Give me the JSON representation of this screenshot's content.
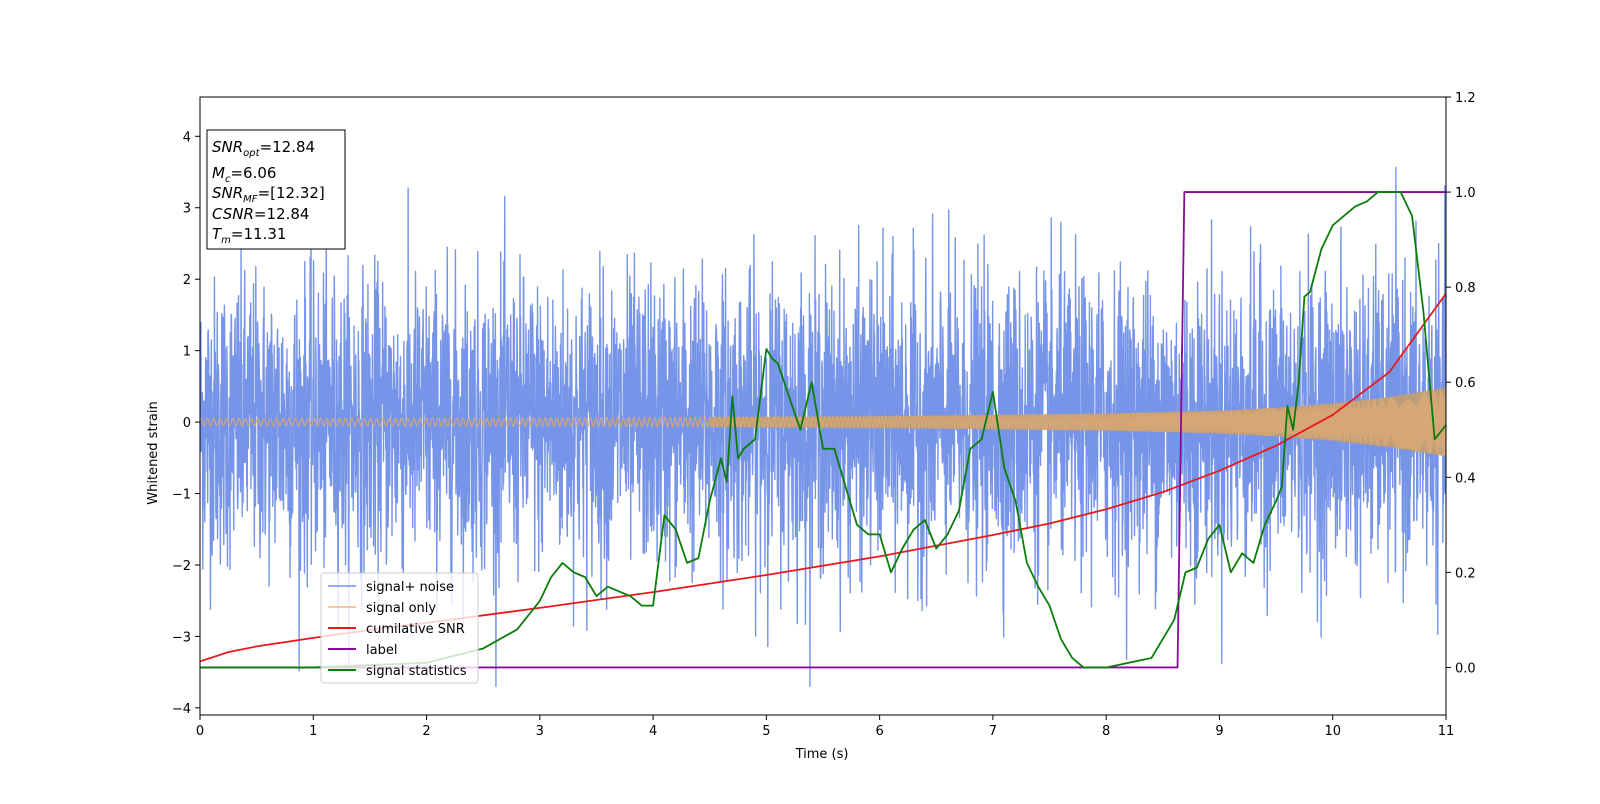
{
  "chart_data": {
    "type": "line",
    "xlabel": "Time (s)",
    "ylabel": "Whitened strain",
    "xlim": [
      0,
      11
    ],
    "ylim_left": [
      -4.1,
      4.55
    ],
    "ylim_right": [
      -0.1,
      1.2
    ],
    "xticks": [
      "0",
      "1",
      "2",
      "3",
      "4",
      "5",
      "6",
      "7",
      "8",
      "9",
      "10",
      "11"
    ],
    "yticks_left": [
      "−4",
      "−3",
      "−2",
      "−1",
      "0",
      "1",
      "2",
      "3",
      "4"
    ],
    "yticks_right": [
      "0.0",
      "0.2",
      "0.4",
      "0.6",
      "0.8",
      "1.0",
      "1.2"
    ],
    "legend_placement": "lower-left",
    "annotation": [
      {
        "main": "SNR",
        "sub": "opt",
        "rest": "=12.84",
        "italic": true
      },
      {
        "main": "M",
        "sub": "c",
        "rest": "=6.06",
        "italic": true
      },
      {
        "main": "SNR",
        "sub": "MF",
        "rest": "=[12.32]",
        "italic": true
      },
      {
        "main": "CSNR",
        "sub": "",
        "rest": "=12.84",
        "italic": true
      },
      {
        "main": "T",
        "sub": "m",
        "rest": "=11.31",
        "italic": true
      }
    ],
    "series": [
      {
        "name": "signal+ noise",
        "color": "#7694e8",
        "axis": "left",
        "description_stats": {
          "mean": 0,
          "std": 1.0,
          "min": -3.7,
          "max": 4.15
        }
      },
      {
        "name": "signal only",
        "color": "#f2b87a",
        "axis": "left",
        "envelope": {
          "x": [
            0,
            2,
            4,
            6,
            7,
            8,
            9,
            9.5,
            10,
            10.5,
            11
          ],
          "amp": [
            0.05,
            0.055,
            0.065,
            0.08,
            0.1,
            0.12,
            0.16,
            0.2,
            0.26,
            0.35,
            0.48
          ]
        }
      },
      {
        "name": "cumilative SNR",
        "color": "#e8191c",
        "axis": "left",
        "x": [
          0,
          0.25,
          0.5,
          1,
          1.5,
          2,
          3,
          4,
          5,
          6,
          7,
          7.5,
          8,
          8.5,
          9,
          9.5,
          10,
          10.5,
          11
        ],
        "y": [
          -3.35,
          -3.22,
          -3.14,
          -3.02,
          -2.91,
          -2.81,
          -2.6,
          -2.38,
          -2.14,
          -1.88,
          -1.58,
          -1.42,
          -1.22,
          -0.98,
          -0.68,
          -0.33,
          0.1,
          0.7,
          1.8
        ]
      },
      {
        "name": "label",
        "color": "#8b0a9c",
        "axis": "right",
        "x": [
          0,
          8.63,
          8.69,
          11
        ],
        "y": [
          0,
          0,
          1,
          1
        ]
      },
      {
        "name": "signal statistics",
        "color": "#0b7d0b",
        "axis": "right",
        "x": [
          0,
          1,
          2,
          2.5,
          2.8,
          3,
          3.1,
          3.2,
          3.3,
          3.4,
          3.5,
          3.6,
          3.7,
          3.8,
          3.9,
          4.0,
          4.1,
          4.2,
          4.3,
          4.4,
          4.5,
          4.6,
          4.65,
          4.7,
          4.75,
          4.8,
          4.9,
          5.0,
          5.05,
          5.1,
          5.2,
          5.3,
          5.4,
          5.5,
          5.6,
          5.7,
          5.8,
          5.9,
          6.0,
          6.1,
          6.2,
          6.3,
          6.4,
          6.5,
          6.6,
          6.7,
          6.8,
          6.9,
          7.0,
          7.1,
          7.2,
          7.3,
          7.4,
          7.5,
          7.6,
          7.7,
          7.8,
          8.0,
          8.2,
          8.4,
          8.6,
          8.7,
          8.8,
          8.9,
          9.0,
          9.1,
          9.2,
          9.3,
          9.4,
          9.5,
          9.55,
          9.6,
          9.65,
          9.7,
          9.75,
          9.8,
          9.9,
          10.0,
          10.1,
          10.2,
          10.3,
          10.4,
          10.5,
          10.6,
          10.7,
          10.8,
          10.9,
          11.0
        ],
        "y": [
          0.0,
          0.0,
          0.01,
          0.04,
          0.08,
          0.14,
          0.19,
          0.22,
          0.2,
          0.19,
          0.15,
          0.17,
          0.16,
          0.15,
          0.13,
          0.13,
          0.32,
          0.29,
          0.22,
          0.23,
          0.35,
          0.44,
          0.39,
          0.57,
          0.44,
          0.46,
          0.48,
          0.67,
          0.65,
          0.64,
          0.57,
          0.5,
          0.6,
          0.46,
          0.46,
          0.38,
          0.3,
          0.28,
          0.28,
          0.2,
          0.25,
          0.29,
          0.31,
          0.25,
          0.28,
          0.33,
          0.46,
          0.48,
          0.58,
          0.42,
          0.35,
          0.22,
          0.17,
          0.13,
          0.06,
          0.02,
          0.0,
          0.0,
          0.01,
          0.02,
          0.1,
          0.2,
          0.21,
          0.27,
          0.3,
          0.2,
          0.24,
          0.22,
          0.3,
          0.35,
          0.38,
          0.55,
          0.5,
          0.6,
          0.78,
          0.79,
          0.88,
          0.93,
          0.95,
          0.97,
          0.98,
          1.0,
          1.0,
          1.0,
          0.95,
          0.75,
          0.48,
          0.51
        ]
      }
    ]
  }
}
